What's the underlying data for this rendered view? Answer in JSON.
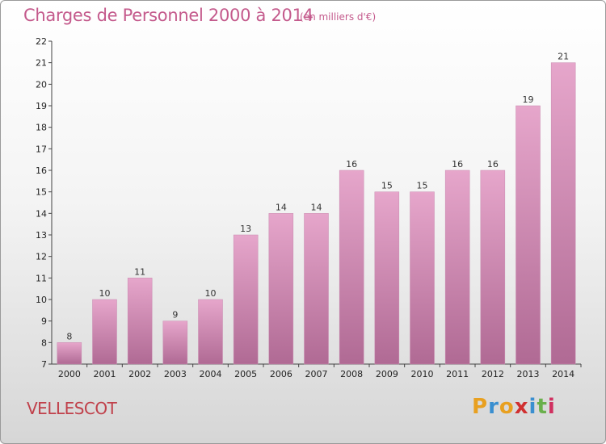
{
  "chart_data": {
    "type": "bar",
    "title": "Charges de Personnel 2000 à 2014",
    "subtitle": "(en milliers d'€)",
    "categories": [
      "2000",
      "2001",
      "2002",
      "2003",
      "2004",
      "2005",
      "2006",
      "2007",
      "2008",
      "2009",
      "2010",
      "2011",
      "2012",
      "2013",
      "2014"
    ],
    "values": [
      8,
      10,
      11,
      9,
      10,
      13,
      14,
      14,
      16,
      15,
      15,
      16,
      16,
      19,
      21
    ],
    "ylim": [
      7,
      22
    ],
    "yticks": [
      7,
      8,
      9,
      10,
      11,
      12,
      13,
      14,
      15,
      16,
      17,
      18,
      19,
      20,
      21,
      22
    ],
    "grid": false,
    "bar_color": "#d98ab6"
  },
  "commune": "VELLESCOT",
  "logo": {
    "letters": [
      "P",
      "r",
      "o",
      "x",
      "i",
      "t",
      "i"
    ],
    "colors": [
      "#e8a020",
      "#3a8fd0",
      "#e8a020",
      "#d03030",
      "#3a8fd0",
      "#6ab04c",
      "#d03060"
    ]
  },
  "colors": {
    "accent": "#c45a8c",
    "commune": "#c0404a"
  }
}
